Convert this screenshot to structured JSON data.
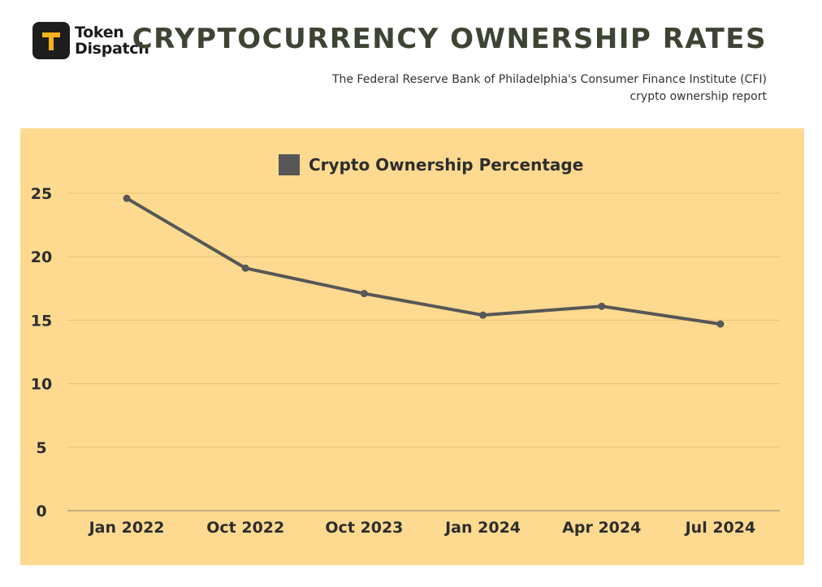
{
  "brand": {
    "line1": "Token",
    "line2": "Dispatch",
    "mark": "T"
  },
  "header": {
    "title": "CRYPTOCURRENCY OWNERSHIP RATES",
    "subtitle_line1": "The Federal Reserve Bank of Philadelphia's Consumer Finance Institute (CFI)",
    "subtitle_line2": "crypto ownership report"
  },
  "colors": {
    "panel": "#fdda90",
    "line": "#575757",
    "grid": "#e8c074",
    "title": "#3d4433"
  },
  "chart_data": {
    "type": "line",
    "categories": [
      "Jan 2022",
      "Oct 2022",
      "Oct 2023",
      "Jan 2024",
      "Apr 2024",
      "Jul 2024"
    ],
    "series": [
      {
        "name": "Crypto Ownership Percentage",
        "values": [
          24.6,
          19.1,
          17.1,
          15.4,
          16.1,
          14.7
        ]
      }
    ],
    "ylim": [
      0,
      25
    ],
    "yticks": [
      0,
      5,
      10,
      15,
      20,
      25
    ],
    "grid": true,
    "legend": "top-center"
  }
}
